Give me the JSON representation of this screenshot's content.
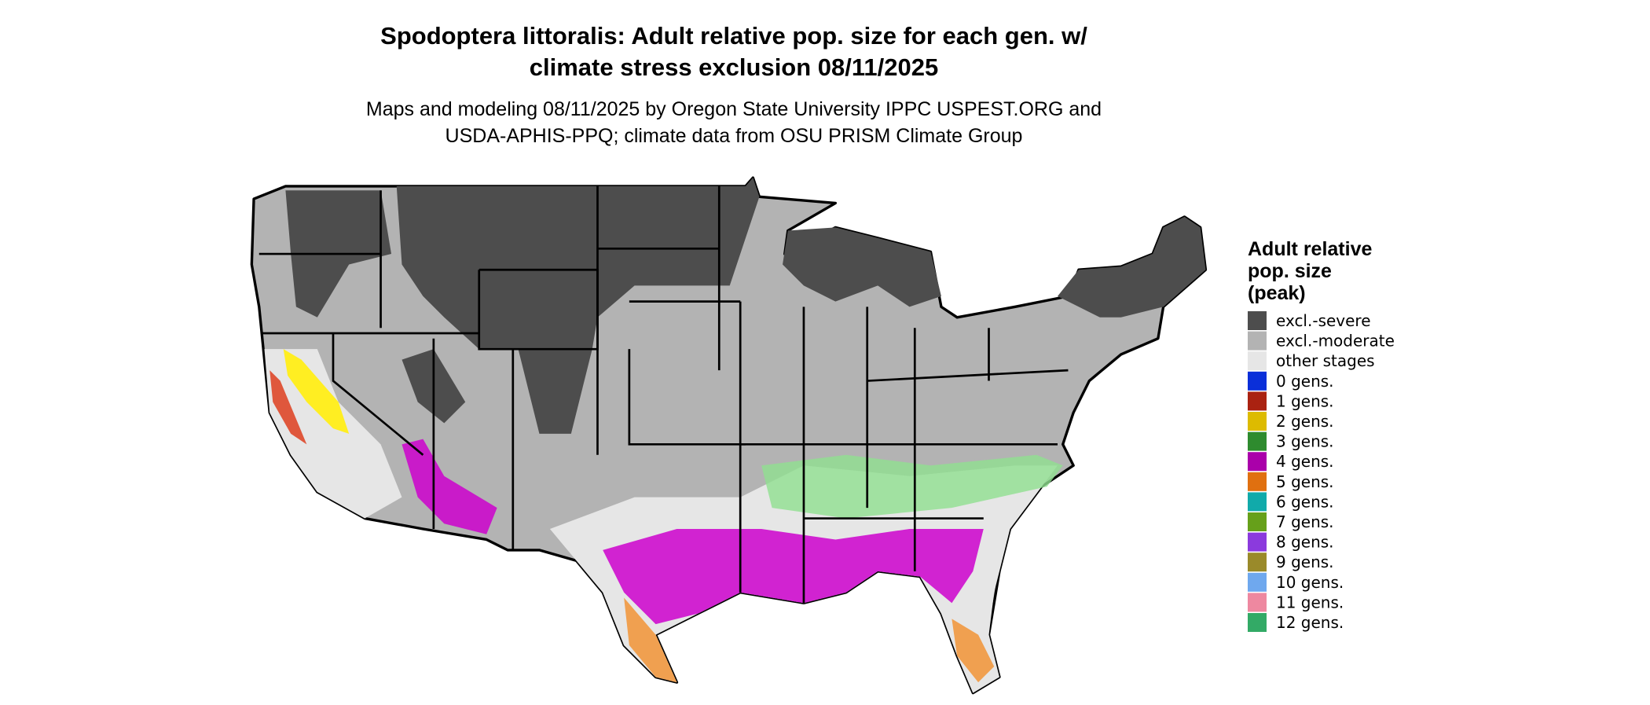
{
  "title": [
    "Spodoptera littoralis: Adult relative pop. size for each gen. w/",
    "climate stress exclusion 08/11/2025"
  ],
  "subtitle": [
    "Maps and modeling 08/11/2025 by Oregon State University IPPC USPEST.ORG and",
    "USDA-APHIS-PPQ; climate data from OSU PRISM Climate Group"
  ],
  "legend": {
    "title": [
      "Adult relative",
      "pop. size",
      "(peak)"
    ],
    "items": [
      {
        "label": "excl.-severe",
        "color": "#4d4d4d"
      },
      {
        "label": "excl.-moderate",
        "color": "#b3b3b3"
      },
      {
        "label": "other stages",
        "color": "#e6e6e6"
      },
      {
        "label": "0 gens.",
        "color": "#0a2fd9"
      },
      {
        "label": "1 gens.",
        "color": "#aa2211"
      },
      {
        "label": "2 gens.",
        "color": "#ddbb00"
      },
      {
        "label": "3 gens.",
        "color": "#2e8b2e"
      },
      {
        "label": "4 gens.",
        "color": "#aa00aa"
      },
      {
        "label": "5 gens.",
        "color": "#e07010"
      },
      {
        "label": "6 gens.",
        "color": "#11aaaa"
      },
      {
        "label": "7 gens.",
        "color": "#66a01a"
      },
      {
        "label": "8 gens.",
        "color": "#8b3add"
      },
      {
        "label": "9 gens.",
        "color": "#9a8a2a"
      },
      {
        "label": "10 gens.",
        "color": "#6fa8ee"
      },
      {
        "label": "11 gens.",
        "color": "#ee88a0"
      },
      {
        "label": "12 gens.",
        "color": "#33aa66"
      }
    ]
  }
}
